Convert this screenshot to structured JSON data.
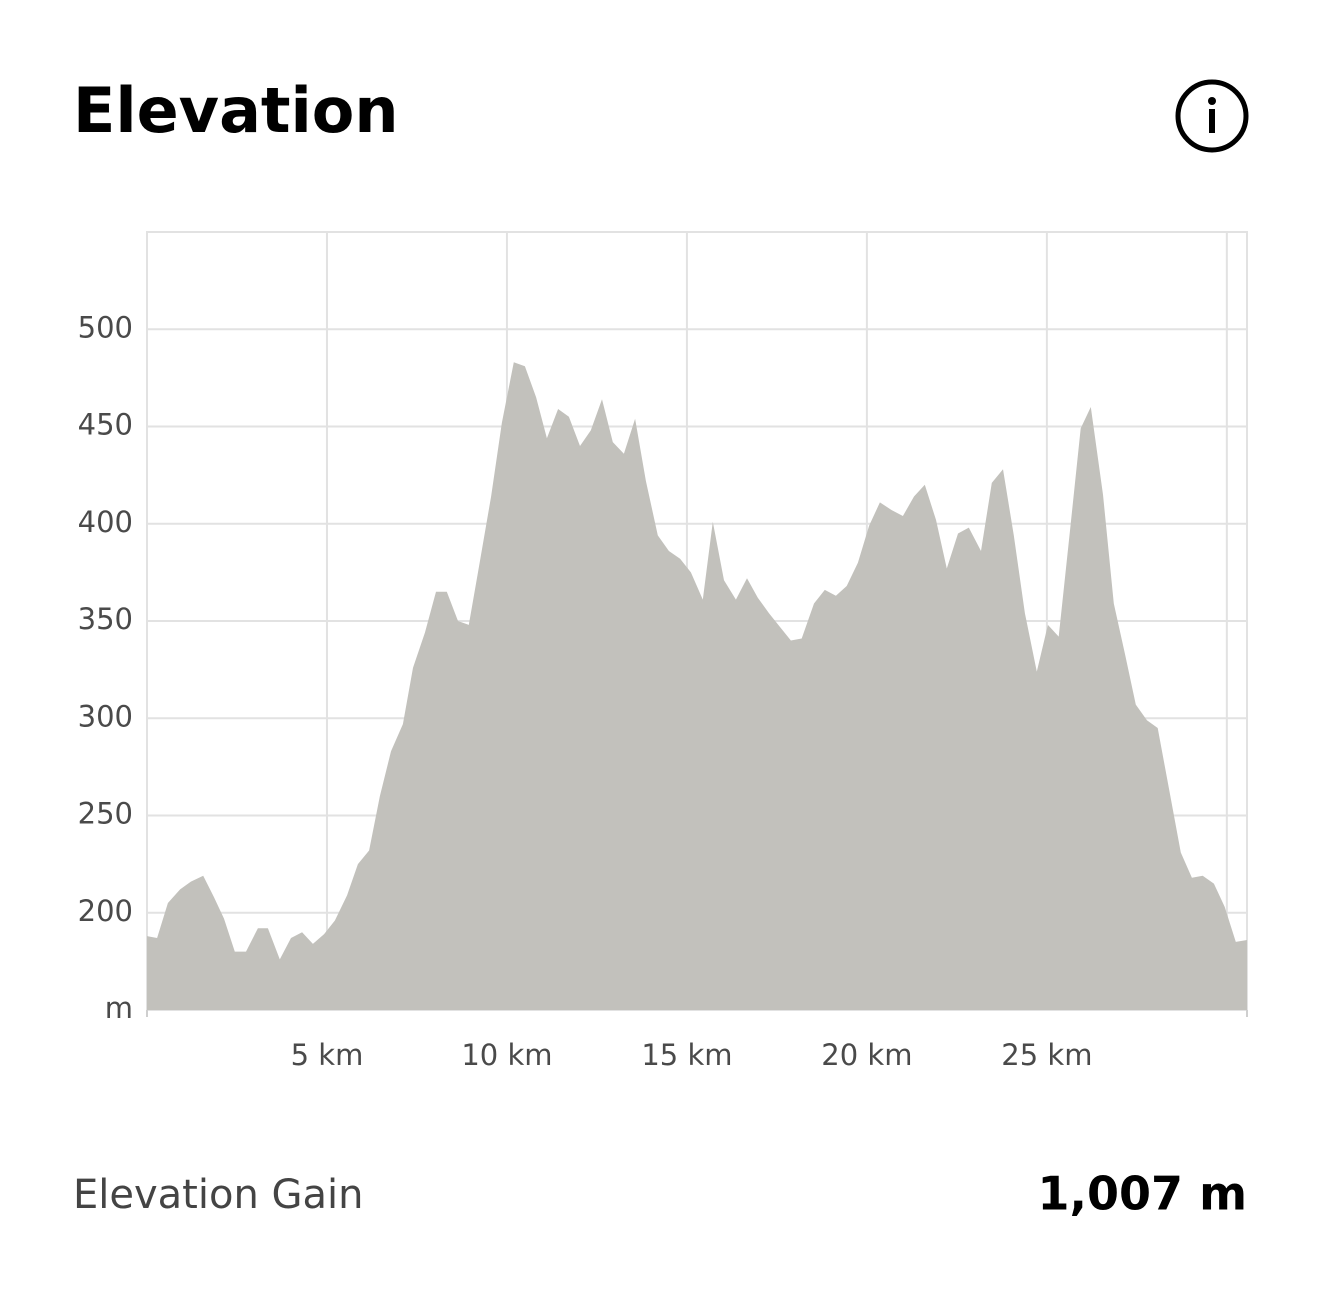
{
  "chart_data": {
    "type": "area",
    "title": "Elevation",
    "color": "#c2c1bc",
    "grid": true,
    "x": [
      0,
      0.28,
      0.58,
      0.92,
      1.22,
      1.56,
      1.86,
      2.14,
      2.44,
      2.75,
      3.08,
      3.36,
      3.69,
      4.0,
      4.31,
      4.61,
      4.92,
      5.22,
      5.56,
      5.86,
      6.17,
      6.47,
      6.78,
      7.11,
      7.39,
      7.72,
      8.03,
      8.33,
      8.64,
      8.94,
      9.25,
      9.56,
      9.86,
      10.19,
      10.5,
      10.81,
      11.11,
      11.42,
      11.72,
      12.03,
      12.33,
      12.64,
      12.94,
      13.25,
      13.56,
      13.86,
      14.19,
      14.5,
      14.81,
      15.11,
      15.44,
      15.72,
      16.03,
      16.36,
      16.67,
      16.97,
      17.28,
      17.58,
      17.89,
      18.19,
      18.53,
      18.83,
      19.14,
      19.44,
      19.75,
      20.06,
      20.36,
      20.69,
      21.0,
      21.31,
      21.61,
      21.92,
      22.22,
      22.53,
      22.83,
      23.17,
      23.47,
      23.78,
      24.08,
      24.39,
      24.72,
      25.03,
      25.33,
      25.64,
      25.94,
      26.22,
      26.56,
      26.86,
      27.17,
      27.47,
      27.78,
      28.08,
      28.39,
      28.72,
      29.03,
      29.33,
      29.64,
      29.94,
      30.25,
      30.56
    ],
    "values": [
      188,
      187,
      205,
      212,
      216,
      219,
      208,
      197,
      180,
      180,
      192,
      192,
      176,
      187,
      190,
      184,
      189,
      196,
      209,
      225,
      232,
      260,
      283,
      297,
      326,
      344,
      365,
      365,
      350,
      348,
      381,
      414,
      452,
      483,
      481,
      465,
      444,
      459,
      455,
      440,
      448,
      464,
      442,
      436,
      454,
      422,
      394,
      386,
      382,
      375,
      361,
      401,
      371,
      361,
      372,
      362,
      354,
      347,
      340,
      341,
      359,
      366,
      363,
      368,
      380,
      399,
      411,
      407,
      404,
      414,
      420,
      402,
      377,
      395,
      398,
      386,
      421,
      428,
      394,
      354,
      324,
      348,
      342,
      396,
      449,
      460,
      415,
      359,
      333,
      307,
      299,
      295,
      264,
      231,
      218,
      219,
      215,
      203,
      185,
      186
    ],
    "xlim": [
      0,
      30.56
    ],
    "xticks": [
      {
        "value": 5,
        "label": "5 km"
      },
      {
        "value": 10,
        "label": "10 km"
      },
      {
        "value": 15,
        "label": "15 km"
      },
      {
        "value": 20,
        "label": "20 km"
      },
      {
        "value": 25,
        "label": "25 km"
      },
      {
        "value": 30,
        "label": null
      }
    ],
    "ylim": [
      150,
      550
    ],
    "yticks": [
      {
        "value": 150,
        "label": "m"
      },
      200,
      250,
      300,
      350,
      400,
      450,
      500
    ]
  },
  "stat": {
    "label": "Elevation Gain",
    "value": "1,007 m"
  }
}
